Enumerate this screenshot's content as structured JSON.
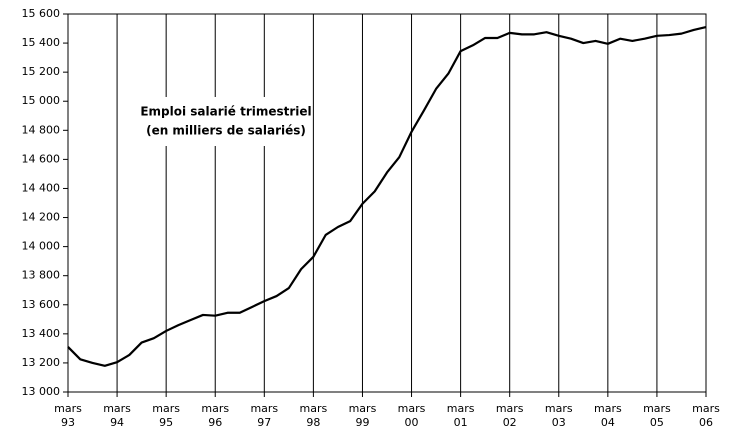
{
  "chart_data": {
    "type": "line",
    "title": "Emploi salarié trimestriel",
    "subtitle": "(en milliers de salariés)",
    "categories": [
      "mars 93",
      null,
      null,
      null,
      "mars 94",
      null,
      null,
      null,
      "mars 95",
      null,
      null,
      null,
      "mars 96",
      null,
      null,
      null,
      "mars 97",
      null,
      null,
      null,
      "mars 98",
      null,
      null,
      null,
      "mars 99",
      null,
      null,
      null,
      "mars 00",
      null,
      null,
      null,
      "mars 01",
      null,
      null,
      null,
      "mars 02",
      null,
      null,
      null,
      "mars 03",
      null,
      null,
      null,
      "mars 04",
      null,
      null,
      null,
      "mars 05",
      null,
      null,
      null,
      "mars 06"
    ],
    "values": [
      13310,
      13225,
      13200,
      13180,
      13205,
      13255,
      13340,
      13370,
      13420,
      13460,
      13495,
      13530,
      13525,
      13545,
      13545,
      13585,
      13625,
      13660,
      13715,
      13845,
      13930,
      14080,
      14135,
      14175,
      14295,
      14380,
      14510,
      14615,
      14790,
      14935,
      15085,
      15190,
      15345,
      15385,
      15435,
      15435,
      15470,
      15460,
      15460,
      15475,
      15450,
      15430,
      15400,
      15415,
      15395,
      15430,
      15415,
      15430,
      15450,
      15455,
      15465,
      15490,
      15510
    ],
    "color": "#000000",
    "ylim": [
      13000,
      15600
    ],
    "yticks": [
      {
        "value": 13000,
        "label": "13 000"
      },
      {
        "value": 13200,
        "label": "13 200"
      },
      {
        "value": 13400,
        "label": "13 400"
      },
      {
        "value": 13600,
        "label": "13 600"
      },
      {
        "value": 13800,
        "label": "13 800"
      },
      {
        "value": 14000,
        "label": "14 000"
      },
      {
        "value": 14200,
        "label": "14 200"
      },
      {
        "value": 14400,
        "label": "14 400"
      },
      {
        "value": 14600,
        "label": "14 600"
      },
      {
        "value": 14800,
        "label": "14 800"
      },
      {
        "value": 15000,
        "label": "15 000"
      },
      {
        "value": 15200,
        "label": "15 200"
      },
      {
        "value": 15400,
        "label": "15 400"
      },
      {
        "value": 15600,
        "label": "15 600"
      }
    ],
    "grid": "vertical"
  }
}
